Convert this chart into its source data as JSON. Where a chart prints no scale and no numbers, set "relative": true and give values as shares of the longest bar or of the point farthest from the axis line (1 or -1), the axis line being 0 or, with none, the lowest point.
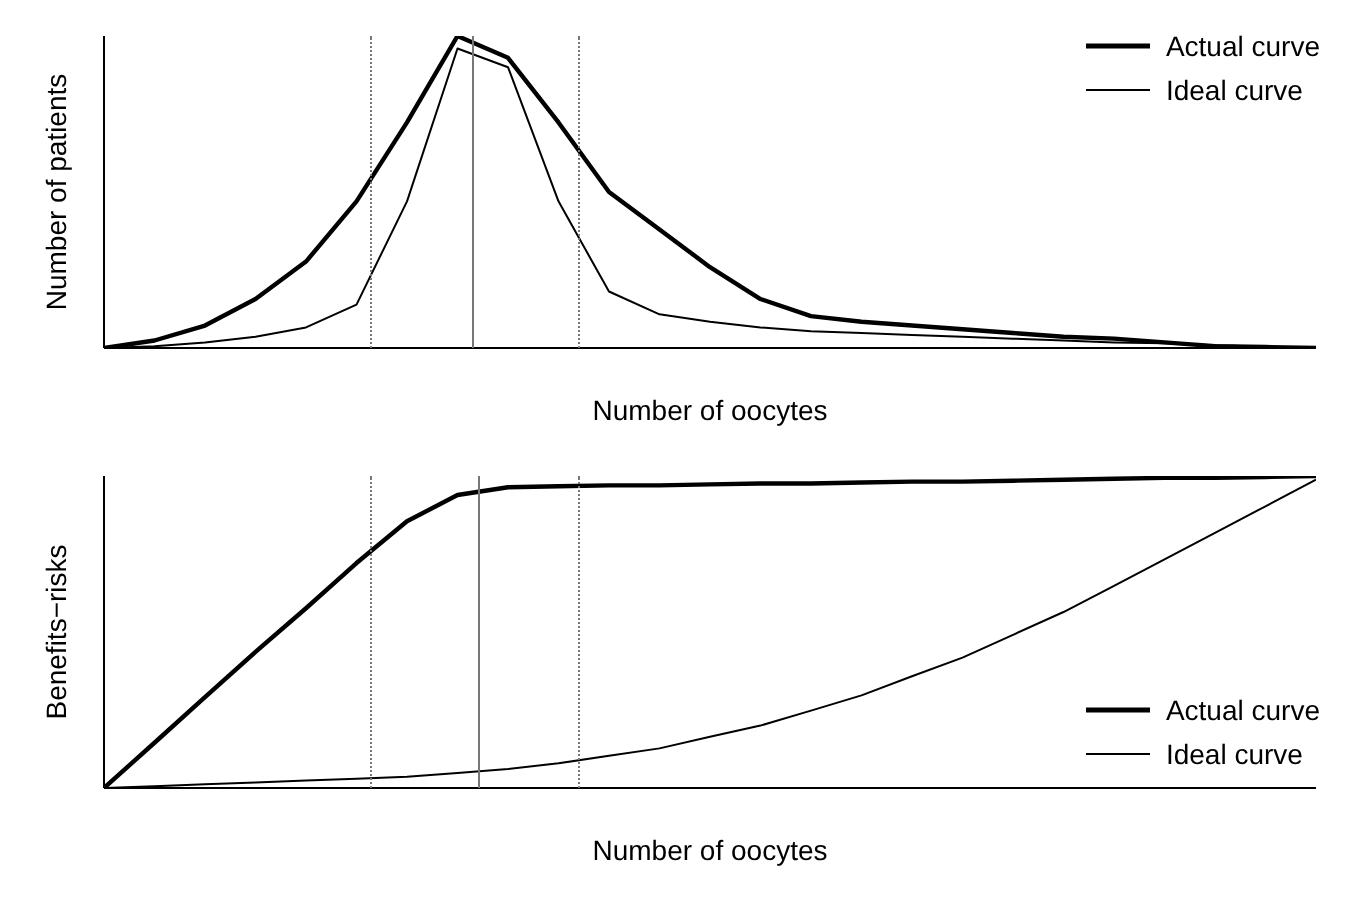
{
  "chart_data": [
    {
      "type": "line",
      "relative": true,
      "xlabel": "Number of oocytes",
      "ylabel": "Number of patients",
      "categories": [
        null,
        null,
        null,
        null,
        null,
        null,
        null,
        null,
        null,
        null,
        null,
        null,
        null,
        null,
        null,
        null,
        null,
        null,
        null,
        null,
        null,
        null,
        null,
        null,
        null
      ],
      "grid": false,
      "marker": "none",
      "legend": "top right",
      "series": [
        {
          "name": "Actual curve",
          "color": "#000000",
          "values": [
            0,
            0.024,
            0.072,
            0.157,
            0.277,
            0.47,
            0.723,
            1,
            0.93,
            0.723,
            0.5,
            0.38,
            0.259,
            0.157,
            0.102,
            0.084,
            0.072,
            0.06,
            0.048,
            0.036,
            0.03,
            0.018,
            0.006,
            0.003,
            0
          ]
        },
        {
          "name": "Ideal curve",
          "color": "#000000",
          "values": [
            0,
            0.006,
            0.018,
            0.036,
            0.066,
            0.139,
            0.47,
            0.96,
            0.9,
            0.47,
            0.181,
            0.108,
            0.084,
            0.066,
            0.054,
            0.048,
            0.042,
            0.036,
            0.03,
            0.024,
            0.018,
            0.015,
            0.009,
            0.004,
            0
          ]
        }
      ]
    },
    {
      "type": "line",
      "relative": true,
      "xlabel": "Number of oocytes",
      "ylabel": "Benefits−risks",
      "categories": [
        null,
        null,
        null,
        null,
        null,
        null,
        null,
        null,
        null,
        null,
        null,
        null,
        null,
        null,
        null,
        null,
        null,
        null,
        null,
        null,
        null,
        null,
        null,
        null,
        null
      ],
      "grid": false,
      "marker": "none",
      "legend": "bottom right",
      "series": [
        {
          "name": "Actual curve",
          "color": "#000000",
          "values": [
            0,
            0.145,
            0.291,
            0.436,
            0.576,
            0.721,
            0.855,
            0.939,
            0.964,
            0.967,
            0.97,
            0.97,
            0.973,
            0.976,
            0.976,
            0.979,
            0.982,
            0.982,
            0.985,
            0.988,
            0.991,
            0.994,
            0.994,
            0.997,
            1
          ]
        },
        {
          "name": "Ideal curve",
          "color": "#000000",
          "values": [
            0,
            0.006,
            0.012,
            0.018,
            0.024,
            0.03,
            0.036,
            0.048,
            0.061,
            0.079,
            0.103,
            0.127,
            0.164,
            0.2,
            0.248,
            0.297,
            0.358,
            0.418,
            0.491,
            0.564,
            0.648,
            0.733,
            0.818,
            0.903,
            0.988
          ]
        }
      ]
    }
  ]
}
